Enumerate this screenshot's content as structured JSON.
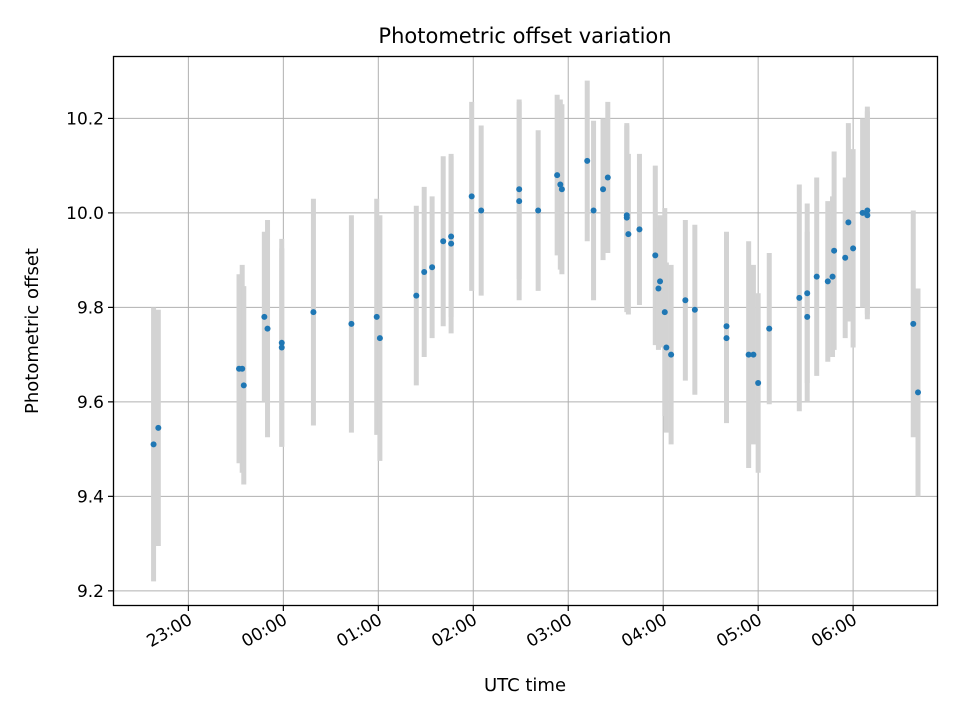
{
  "chart_data": {
    "type": "scatter",
    "title": "Photometric offset variation",
    "xlabel": "UTC time",
    "ylabel": "Photometric offset",
    "grid": true,
    "x_ticks": [
      "23:00",
      "00:00",
      "01:00",
      "02:00",
      "03:00",
      "04:00",
      "05:00",
      "06:00"
    ],
    "y_ticks": [
      "9.2",
      "9.4",
      "9.6",
      "9.8",
      "10.0",
      "10.2"
    ],
    "ylim": [
      9.17,
      10.33
    ],
    "xlim": [
      "22:13",
      "06:53"
    ],
    "point_color": "#1f77b4",
    "errorbar_color": "#d3d3d3",
    "series": [
      {
        "x": [
          "22:38",
          "22:41",
          "23:32",
          "23:34",
          "23:35",
          "23:48",
          "23:50",
          "23:59",
          "23:59",
          "00:19",
          "00:43",
          "00:59",
          "01:01",
          "01:24",
          "01:29",
          "01:34",
          "01:41",
          "01:46",
          "01:46",
          "01:59",
          "02:05",
          "02:29",
          "02:29",
          "02:41",
          "02:53",
          "02:55",
          "02:56",
          "03:12",
          "03:16",
          "03:22",
          "03:25",
          "03:37",
          "03:37",
          "03:38",
          "03:45",
          "03:55",
          "03:57",
          "03:58",
          "04:01",
          "04:02",
          "04:05",
          "04:14",
          "04:20",
          "04:40",
          "04:40",
          "04:54",
          "04:57",
          "05:00",
          "05:07",
          "05:26",
          "05:31",
          "05:31",
          "05:37",
          "05:44",
          "05:47",
          "05:48",
          "05:55",
          "05:57",
          "06:00",
          "06:06",
          "06:09",
          "06:09",
          "06:38",
          "06:41"
        ],
        "y": [
          9.51,
          9.545,
          9.67,
          9.67,
          9.635,
          9.78,
          9.755,
          9.725,
          9.715,
          9.79,
          9.765,
          9.78,
          9.735,
          9.825,
          9.875,
          9.885,
          9.94,
          9.95,
          9.935,
          10.035,
          10.005,
          10.05,
          10.025,
          10.005,
          10.08,
          10.06,
          10.05,
          10.11,
          10.005,
          10.05,
          10.075,
          9.995,
          9.99,
          9.955,
          9.965,
          9.91,
          9.84,
          9.855,
          9.79,
          9.715,
          9.7,
          9.815,
          9.795,
          9.76,
          9.735,
          9.7,
          9.7,
          9.64,
          9.755,
          9.82,
          9.83,
          9.78,
          9.865,
          9.855,
          9.865,
          9.92,
          9.905,
          9.98,
          9.925,
          10.0,
          9.995,
          10.005,
          9.765,
          9.62
        ],
        "error": [
          0.29,
          0.25,
          0.2,
          0.22,
          0.21,
          0.18,
          0.23,
          0.22,
          0.21,
          0.24,
          0.23,
          0.25,
          0.26,
          0.19,
          0.18,
          0.15,
          0.18,
          0.17,
          0.19,
          0.2,
          0.18,
          0.19,
          0.21,
          0.17,
          0.17,
          0.18,
          0.18,
          0.17,
          0.19,
          0.15,
          0.16,
          0.19,
          0.2,
          0.17,
          0.16,
          0.19,
          0.13,
          0.14,
          0.22,
          0.18,
          0.19,
          0.17,
          0.18,
          0.2,
          0.18,
          0.24,
          0.19,
          0.19,
          0.16,
          0.24,
          0.19,
          0.18,
          0.21,
          0.17,
          0.17,
          0.21,
          0.17,
          0.21,
          0.21,
          0.2,
          0.22,
          0.22,
          0.24,
          0.22
        ]
      }
    ]
  }
}
